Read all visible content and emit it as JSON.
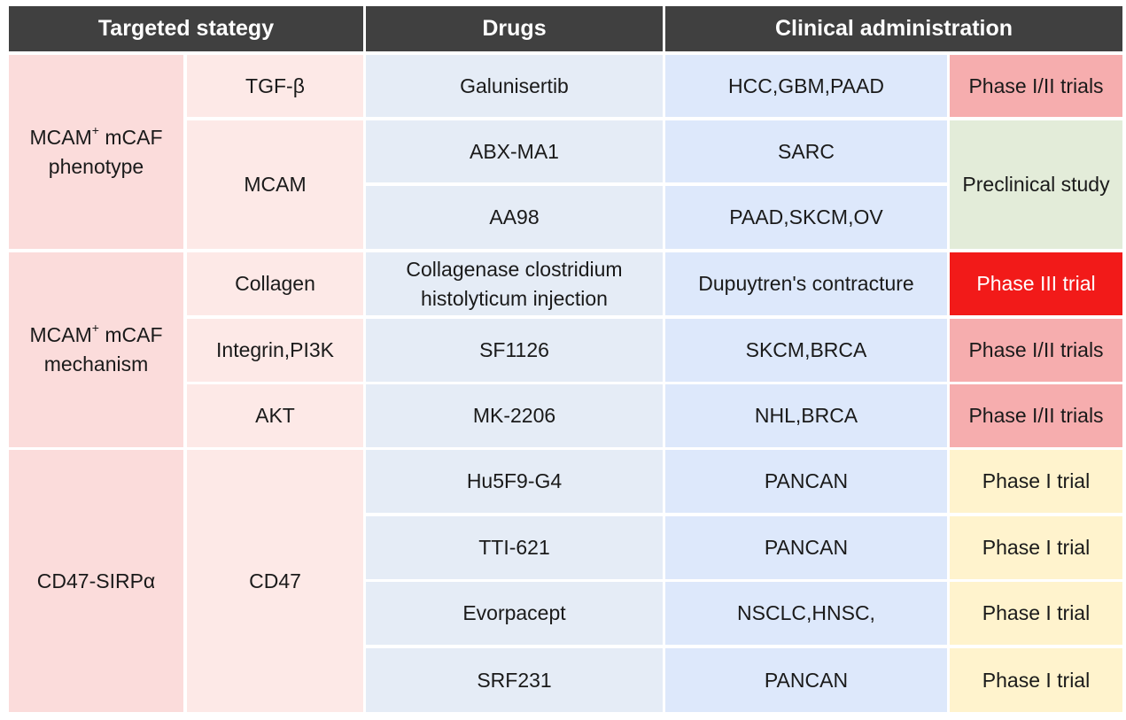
{
  "header": {
    "strategy": "Targeted stategy",
    "drugs": "Drugs",
    "clinical": "Clinical administration"
  },
  "strategies": [
    {
      "line1_main": "MCAM",
      "line1_sup": "+",
      "line1_rest": " mCAF",
      "line2": "phenotype"
    },
    {
      "line1_main": "MCAM",
      "line1_sup": "+",
      "line1_rest": " mCAF",
      "line2": "mechanism"
    },
    {
      "label": "CD47-SIRPα"
    }
  ],
  "targets": [
    "TGF-β",
    "MCAM",
    "Collagen",
    "Integrin,PI3K",
    "AKT",
    "CD47"
  ],
  "rows": [
    {
      "drug": "Galunisertib",
      "indication": "HCC,GBM,PAAD",
      "phase": "Phase I/II trials"
    },
    {
      "drug": "ABX-MA1",
      "indication": "SARC",
      "phase": "Preclinical study"
    },
    {
      "drug": "AA98",
      "indication": "PAAD,SKCM,OV"
    },
    {
      "drug_line1": "Collagenase clostridium",
      "drug_line2": "histolyticum injection",
      "indication": "Dupuytren's contracture",
      "phase": "Phase III trial"
    },
    {
      "drug": "SF1126",
      "indication": "SKCM,BRCA",
      "phase": "Phase I/II trials"
    },
    {
      "drug": "MK-2206",
      "indication": "NHL,BRCA",
      "phase": "Phase I/II trials"
    },
    {
      "drug": "Hu5F9-G4",
      "indication": "PANCAN",
      "phase": "Phase I trial"
    },
    {
      "drug": "TTI-621",
      "indication": "PANCAN",
      "phase": "Phase I trial"
    },
    {
      "drug": "Evorpacept",
      "indication": "NSCLC,HNSC,",
      "phase": "Phase I trial"
    },
    {
      "drug": "SRF231",
      "indication": "PANCAN",
      "phase": "Phase I trial"
    }
  ],
  "colors": {
    "header": "#404040",
    "phase_I_II": "#f6adae",
    "preclinical": "#e3ecd9",
    "phase_III": "#f21a19",
    "phase_I": "#fff3cd"
  }
}
